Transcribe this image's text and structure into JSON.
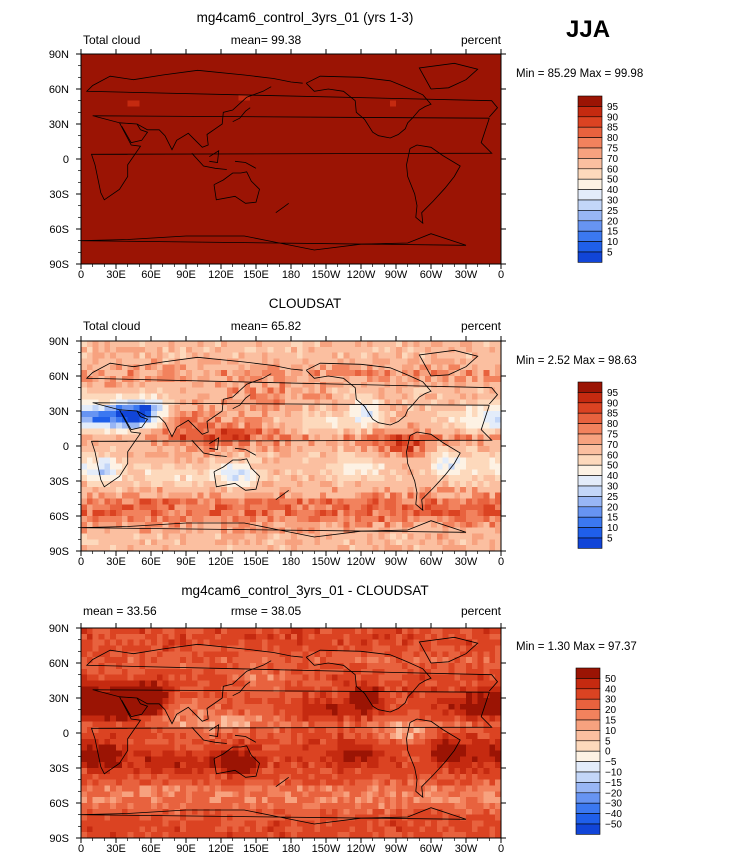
{
  "season": "JJA",
  "palettes": {
    "full": [
      "#000080",
      "#0a2ebd",
      "#1145d8",
      "#1f5fea",
      "#3b78f1",
      "#6794f2",
      "#98b6f5",
      "#c3d6f8",
      "#e3ecfa",
      "#fdf2e4",
      "#fdd9bc",
      "#fbbfa0",
      "#f7a27f",
      "#f2825d",
      "#e8623e",
      "#db4322",
      "#c52a10",
      "#9b1404"
    ],
    "diff": [
      "#000080",
      "#0a2ebd",
      "#1145d8",
      "#1f5fea",
      "#3b78f1",
      "#6794f2",
      "#98b6f5",
      "#c3d6f8",
      "#e3ecfa",
      "#fdf2e4",
      "#fdd9bc",
      "#fbbfa0",
      "#f7a27f",
      "#f2825d",
      "#e8623e",
      "#db4322",
      "#c52a10",
      "#9b1404"
    ]
  },
  "chart_data": [
    {
      "type": "heatmap",
      "title": "mg4cam6_control_3yrs_01 (yrs 1-3)",
      "left_label": "Total cloud",
      "center_label": "mean=  99.38",
      "right_label": "percent",
      "stats": "Min =  85.29 Max =  99.98",
      "min": 85.29,
      "max": 99.98,
      "mean": 99.38,
      "field": "model",
      "xticks": [
        "0",
        "30E",
        "60E",
        "90E",
        "120E",
        "150E",
        "180",
        "150W",
        "120W",
        "90W",
        "60W",
        "30W",
        "0"
      ],
      "yticks": [
        "90N",
        "60N",
        "30N",
        "0",
        "30S",
        "60S",
        "90S"
      ],
      "colorbar_labels": [
        "95",
        "90",
        "85",
        "80",
        "75",
        "70",
        "60",
        "50",
        "40",
        "30",
        "25",
        "20",
        "15",
        "10",
        "5"
      ],
      "palette": "full"
    },
    {
      "type": "heatmap",
      "title": "CLOUDSAT",
      "left_label": "Total cloud",
      "center_label": "mean=  65.82",
      "right_label": "percent",
      "stats": "Min =   2.52 Max =  98.63",
      "min": 2.52,
      "max": 98.63,
      "mean": 65.82,
      "field": "obs",
      "xticks": [
        "0",
        "30E",
        "60E",
        "90E",
        "120E",
        "150E",
        "180",
        "150W",
        "120W",
        "90W",
        "60W",
        "30W",
        "0"
      ],
      "yticks": [
        "90N",
        "60N",
        "30N",
        "0",
        "30S",
        "60S",
        "90S"
      ],
      "colorbar_labels": [
        "95",
        "90",
        "85",
        "80",
        "75",
        "70",
        "60",
        "50",
        "40",
        "30",
        "25",
        "20",
        "15",
        "10",
        "5"
      ],
      "palette": "full"
    },
    {
      "type": "heatmap",
      "title": "mg4cam6_control_3yrs_01 - CLOUDSAT",
      "left_label": "mean =  33.56",
      "center_label": "rmse =  38.05",
      "right_label": "percent",
      "stats": "Min =   1.30 Max =  97.37",
      "min": 1.3,
      "max": 97.37,
      "mean": 33.56,
      "rmse": 38.05,
      "field": "diff",
      "xticks": [
        "0",
        "30E",
        "60E",
        "90E",
        "120E",
        "150E",
        "180",
        "150W",
        "120W",
        "90W",
        "60W",
        "30W",
        "0"
      ],
      "yticks": [
        "90N",
        "60N",
        "30N",
        "0",
        "30S",
        "60S",
        "90S"
      ],
      "colorbar_labels": [
        "50",
        "40",
        "30",
        "20",
        "15",
        "10",
        "5",
        "0",
        "−5",
        "−10",
        "−15",
        "−20",
        "−30",
        "−40",
        "−50"
      ],
      "palette": "diff"
    }
  ]
}
